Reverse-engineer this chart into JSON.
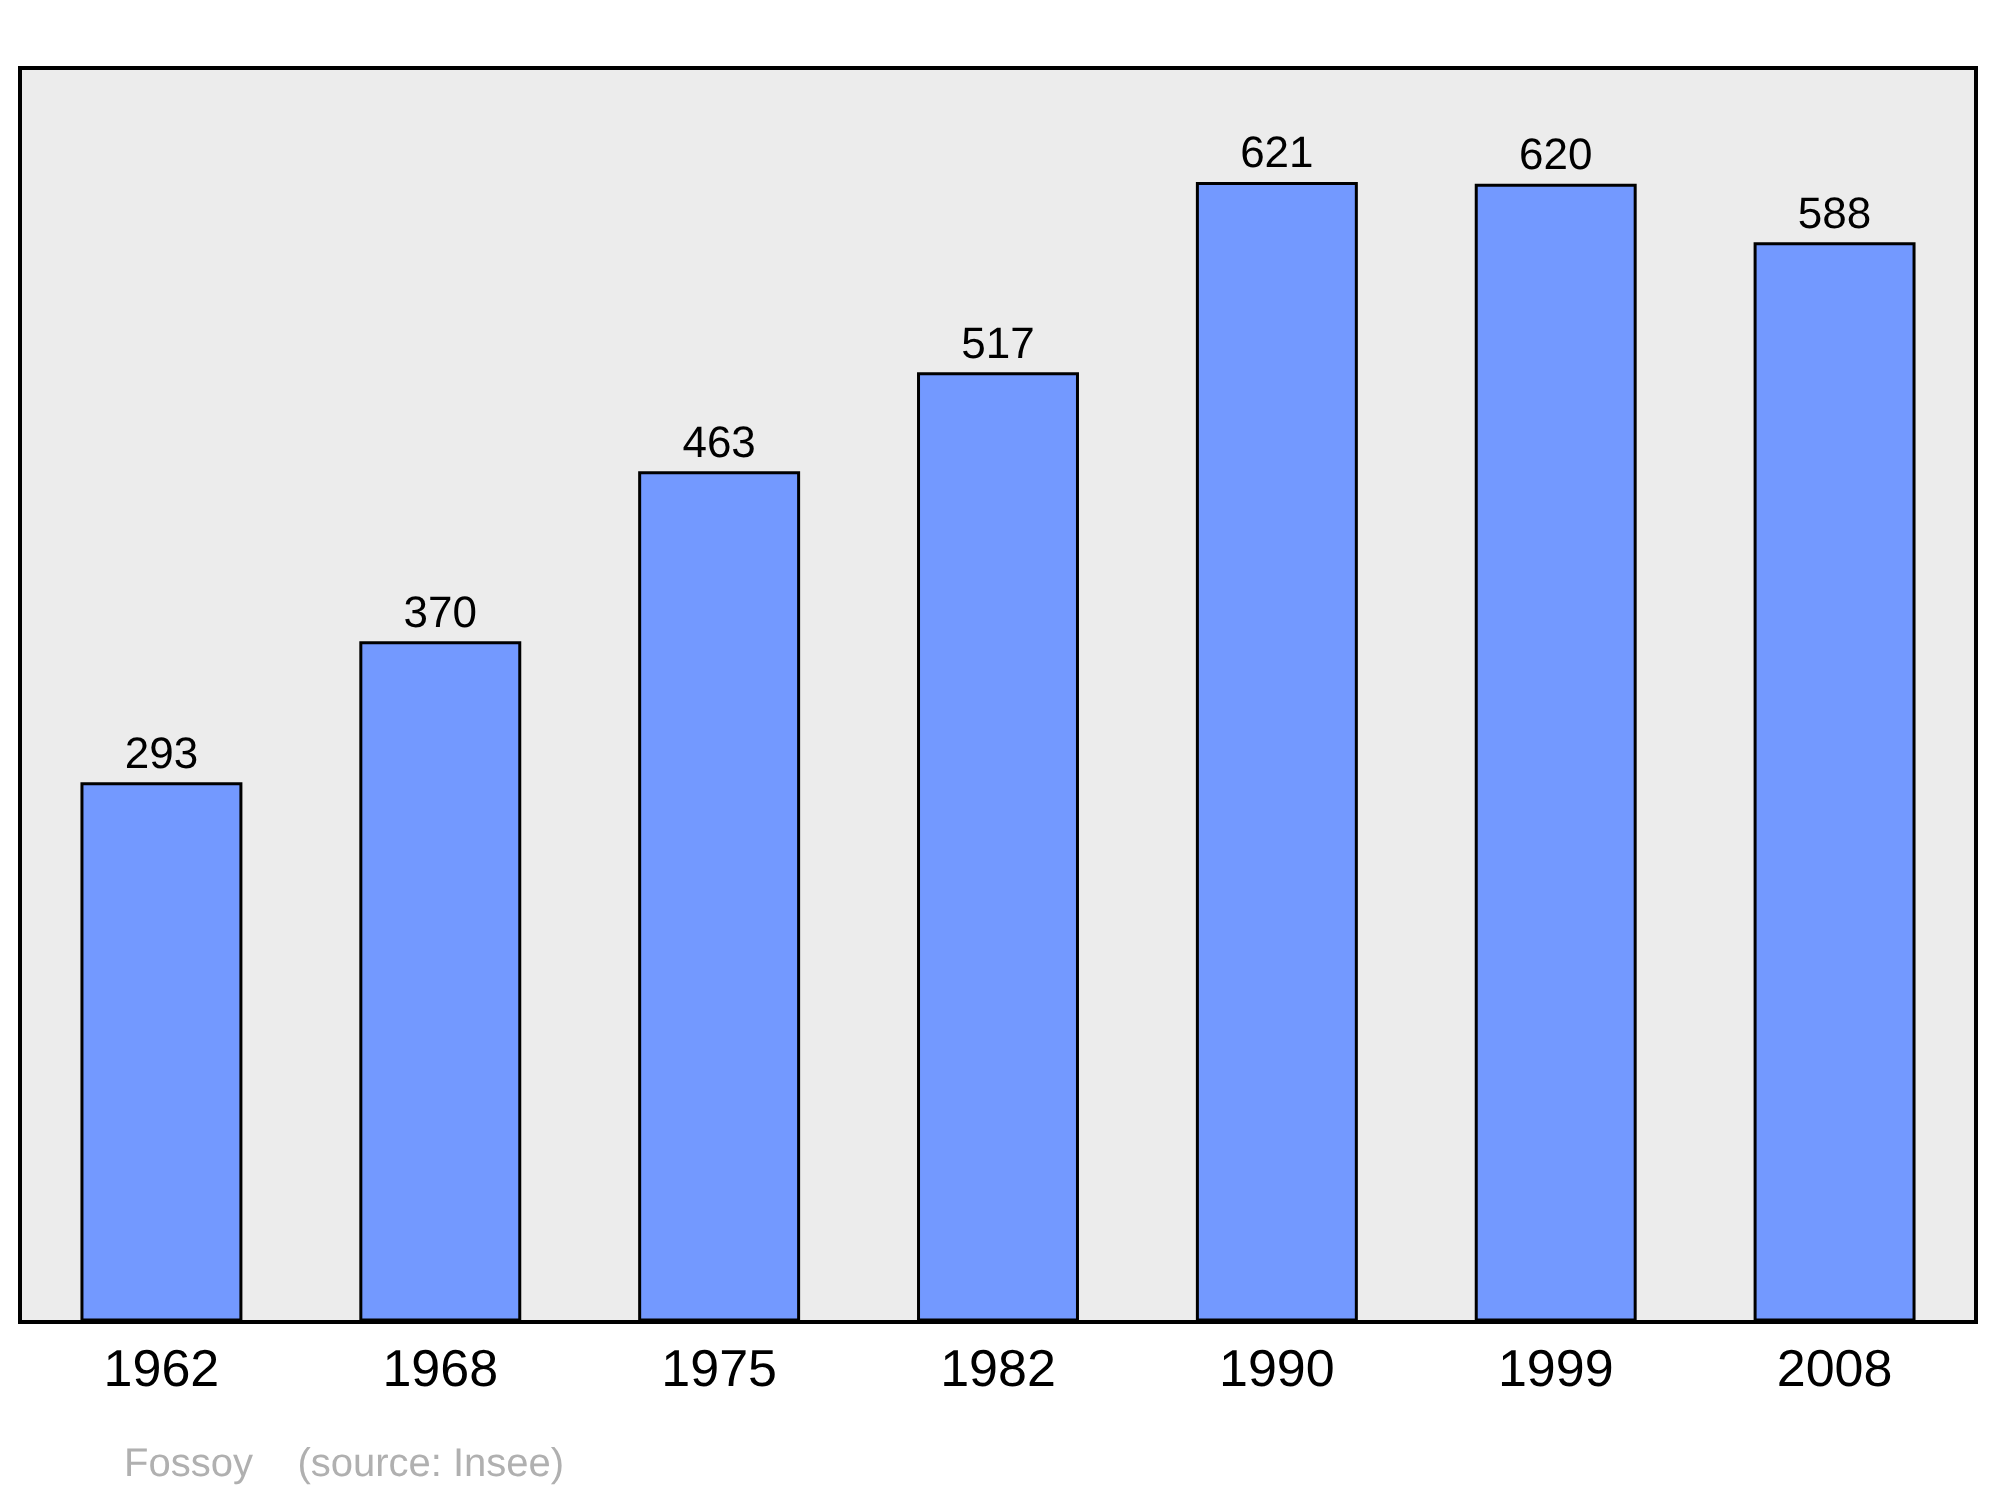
{
  "chart_data": {
    "type": "bar",
    "categories": [
      "1962",
      "1968",
      "1975",
      "1982",
      "1990",
      "1999",
      "2008"
    ],
    "values": [
      293,
      370,
      463,
      517,
      621,
      620,
      588
    ],
    "color": "#7399ff",
    "data_labels": true,
    "ylim": [
      0,
      683
    ],
    "tick_labels": "x",
    "grid": false,
    "legend": false,
    "annotations": [
      "Fossoy    (source: Insee)"
    ]
  }
}
